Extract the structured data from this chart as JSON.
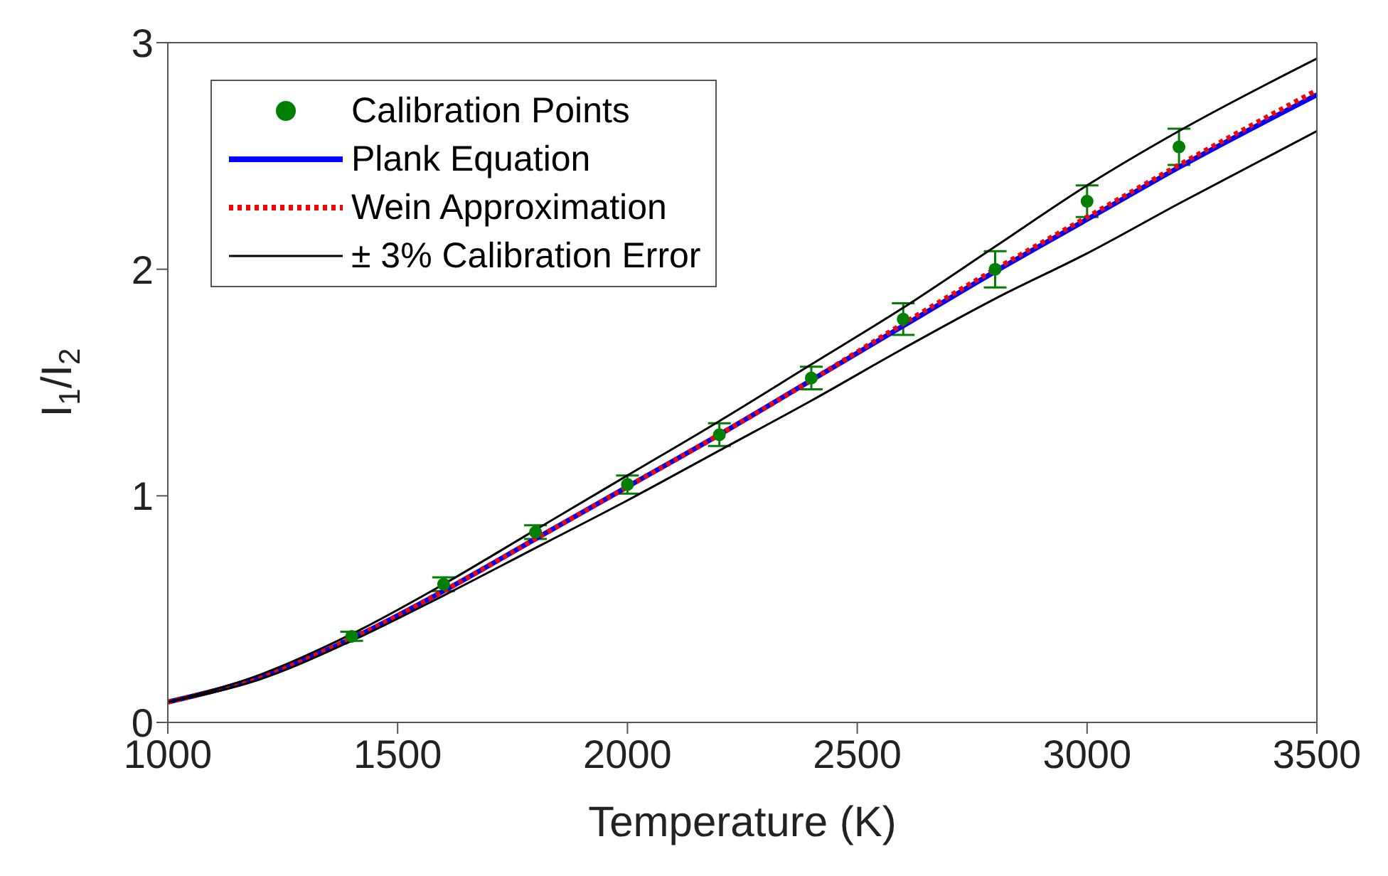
{
  "chart_data": {
    "type": "line",
    "xlabel": "Temperature (K)",
    "ylabel": "I$_{1}$/I$_{2}$",
    "xlim": [
      1000,
      3500
    ],
    "xticks": [
      1000,
      1500,
      2000,
      2500,
      3000,
      3500
    ],
    "ylim": [
      0,
      3
    ],
    "yticks": [
      0,
      1,
      2,
      3
    ],
    "grid": false,
    "legend": "top left",
    "line_style": "solid",
    "marker": "none",
    "series": [
      {
        "name": "Calibration Points",
        "type": "scatter",
        "marker": "circle",
        "color": "#008000",
        "x": [
          1400,
          1600,
          1800,
          2000,
          2200,
          2400,
          2600,
          2800,
          3000,
          3200
        ],
        "values": [
          0.38,
          0.61,
          0.84,
          1.05,
          1.27,
          1.52,
          1.78,
          2.0,
          2.3,
          2.54
        ],
        "errors": [
          0.02,
          0.03,
          0.03,
          0.04,
          0.05,
          0.05,
          0.07,
          0.08,
          0.07,
          0.08
        ]
      },
      {
        "name": "Plank Equation",
        "color": "#0000ff",
        "x": [
          1000,
          1200,
          1400,
          1600,
          1800,
          2000,
          2200,
          2400,
          2600,
          2800,
          3000,
          3200,
          3500
        ],
        "values": [
          0.09,
          0.2,
          0.37,
          0.58,
          0.81,
          1.04,
          1.27,
          1.51,
          1.75,
          1.99,
          2.22,
          2.45,
          2.77
        ]
      },
      {
        "name": "Wein Approximation",
        "color": "#ff0000",
        "line_style": "dotted",
        "x": [
          1000,
          1200,
          1400,
          1600,
          1800,
          2000,
          2200,
          2400,
          2600,
          2800,
          3000,
          3200,
          3500
        ],
        "values": [
          0.09,
          0.2,
          0.37,
          0.58,
          0.81,
          1.04,
          1.27,
          1.51,
          1.76,
          2.0,
          2.23,
          2.46,
          2.79
        ]
      },
      {
        "name": "± 3% Calibration Error",
        "color": "#000000",
        "x": [
          1000,
          1200,
          1400,
          1600,
          1800,
          2000,
          2200,
          2400,
          2600,
          2800,
          3000,
          3200,
          3500
        ],
        "values": [
          0.09,
          0.21,
          0.39,
          0.61,
          0.85,
          1.09,
          1.33,
          1.58,
          1.83,
          2.1,
          2.37,
          2.61,
          2.93
        ]
      },
      {
        "color": "#000000",
        "x": [
          1000,
          1200,
          1400,
          1600,
          1800,
          2000,
          2200,
          2400,
          2600,
          2800,
          3000,
          3200,
          3500
        ],
        "values": [
          0.09,
          0.19,
          0.36,
          0.56,
          0.77,
          0.98,
          1.2,
          1.42,
          1.65,
          1.87,
          2.07,
          2.29,
          2.61
        ]
      }
    ]
  }
}
